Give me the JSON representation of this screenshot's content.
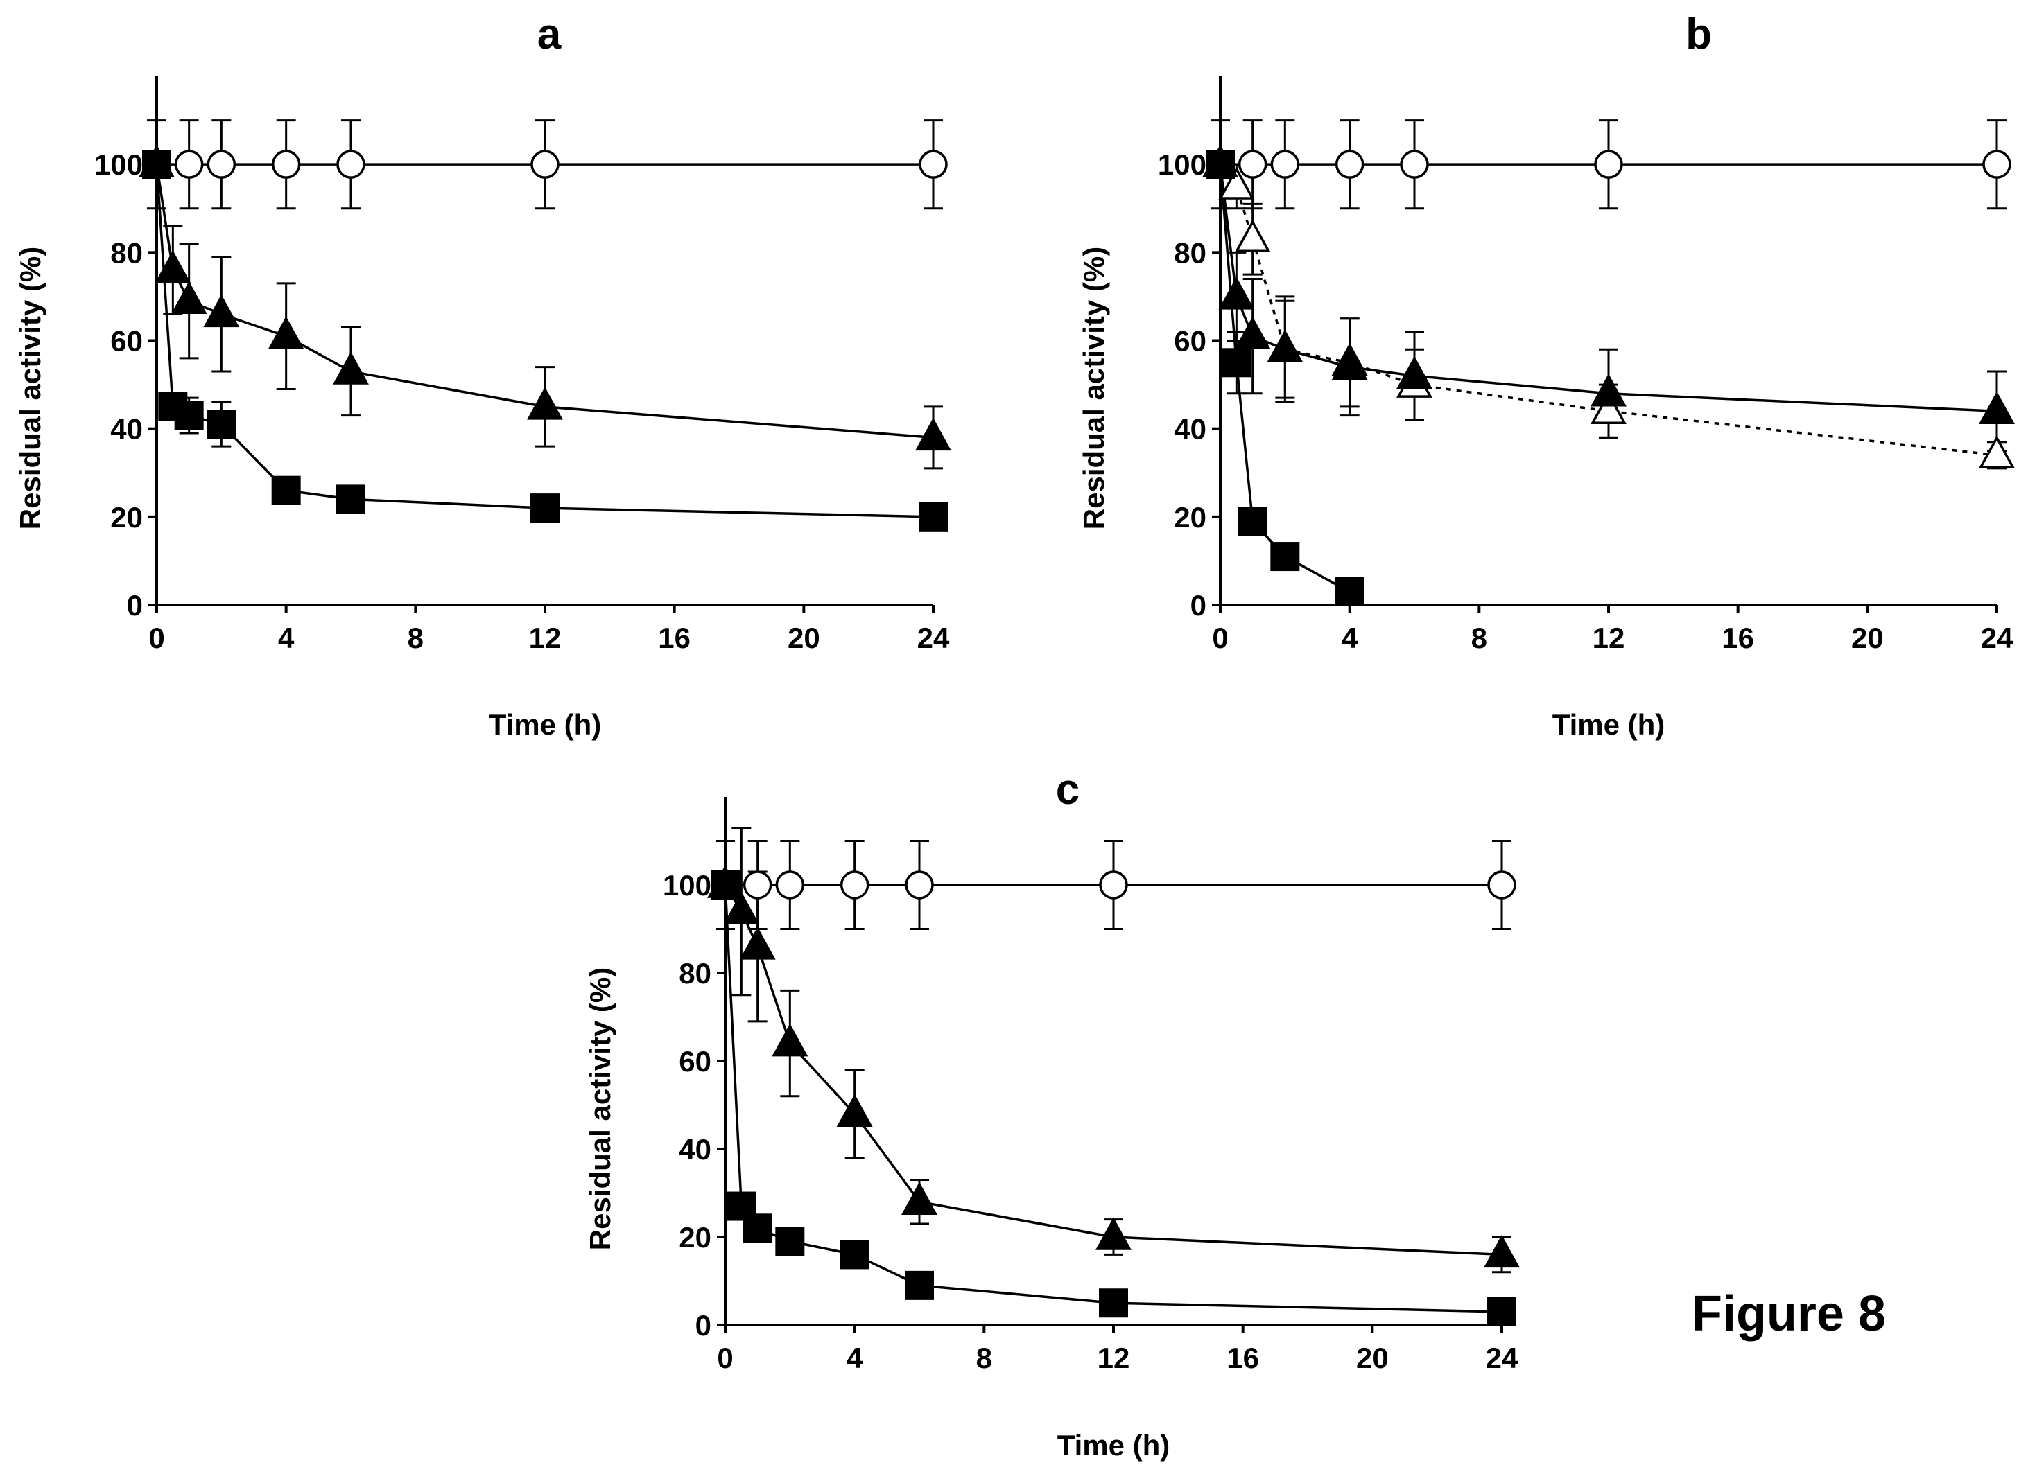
{
  "figure_label": "Figure 8",
  "chart_data": [
    {
      "panel": "a",
      "type": "line",
      "title": "a",
      "xlabel": "Time (h)",
      "ylabel": "Residual activity (%)",
      "xlim": [
        0,
        24
      ],
      "ylim": [
        0,
        120
      ],
      "xticks": [
        0,
        4,
        8,
        12,
        16,
        20,
        24
      ],
      "yticks": [
        0,
        20,
        40,
        60,
        80,
        100
      ],
      "series": [
        {
          "name": "open circles",
          "marker": "circle-open",
          "style": "solid",
          "x": [
            0,
            1,
            2,
            4,
            6,
            12,
            24
          ],
          "y": [
            100,
            100,
            100,
            100,
            100,
            100,
            100
          ],
          "err": [
            10,
            10,
            10,
            10,
            10,
            10,
            10
          ]
        },
        {
          "name": "filled triangles",
          "marker": "triangle-filled",
          "style": "solid",
          "x": [
            0,
            0.5,
            1,
            2,
            4,
            6,
            12,
            24
          ],
          "y": [
            100,
            76,
            69,
            66,
            61,
            53,
            45,
            38
          ],
          "err": [
            0,
            10,
            13,
            13,
            12,
            10,
            9,
            7
          ]
        },
        {
          "name": "filled squares",
          "marker": "square-filled",
          "style": "solid",
          "x": [
            0,
            0.5,
            1,
            2,
            4,
            6,
            12,
            24
          ],
          "y": [
            100,
            45,
            43,
            41,
            26,
            24,
            22,
            20
          ],
          "err": [
            0,
            0,
            4,
            5,
            3,
            0,
            0,
            0
          ]
        }
      ]
    },
    {
      "panel": "b",
      "type": "line",
      "title": "b",
      "xlabel": "Time (h)",
      "ylabel": "Residual activity (%)",
      "xlim": [
        0,
        24
      ],
      "ylim": [
        0,
        120
      ],
      "xticks": [
        0,
        4,
        8,
        12,
        16,
        20,
        24
      ],
      "yticks": [
        0,
        20,
        40,
        60,
        80,
        100
      ],
      "series": [
        {
          "name": "open circles",
          "marker": "circle-open",
          "style": "solid",
          "x": [
            0,
            1,
            2,
            4,
            6,
            12,
            24
          ],
          "y": [
            100,
            100,
            100,
            100,
            100,
            100,
            100
          ],
          "err": [
            10,
            10,
            10,
            10,
            10,
            10,
            10
          ]
        },
        {
          "name": "open triangles",
          "marker": "triangle-open",
          "style": "dotted",
          "x": [
            0,
            0.5,
            1,
            2,
            4,
            6,
            12,
            24
          ],
          "y": [
            100,
            95,
            83,
            58,
            55,
            50,
            44,
            34
          ],
          "err": [
            0,
            5,
            8,
            11,
            10,
            8,
            6,
            3
          ]
        },
        {
          "name": "filled triangles",
          "marker": "triangle-filled",
          "style": "solid",
          "x": [
            0,
            0.5,
            1,
            2,
            4,
            6,
            12,
            24
          ],
          "y": [
            100,
            70,
            61,
            58,
            54,
            52,
            48,
            44
          ],
          "err": [
            0,
            10,
            13,
            12,
            11,
            10,
            10,
            9
          ]
        },
        {
          "name": "filled squares",
          "marker": "square-filled",
          "style": "solid",
          "x": [
            0,
            0.5,
            1,
            2,
            4
          ],
          "y": [
            100,
            55,
            19,
            11,
            3
          ],
          "err": [
            0,
            7,
            0,
            0,
            0
          ]
        }
      ]
    },
    {
      "panel": "c",
      "type": "line",
      "title": "c",
      "xlabel": "Time (h)",
      "ylabel": "Residual activity (%)",
      "xlim": [
        0,
        24
      ],
      "ylim": [
        0,
        120
      ],
      "xticks": [
        0,
        4,
        8,
        12,
        16,
        20,
        24
      ],
      "yticks": [
        0,
        20,
        40,
        60,
        80,
        100
      ],
      "series": [
        {
          "name": "open circles",
          "marker": "circle-open",
          "style": "solid",
          "x": [
            0,
            1,
            2,
            4,
            6,
            12,
            24
          ],
          "y": [
            100,
            100,
            100,
            100,
            100,
            100,
            100
          ],
          "err": [
            10,
            10,
            10,
            10,
            10,
            10,
            10
          ]
        },
        {
          "name": "filled triangles",
          "marker": "triangle-filled",
          "style": "solid",
          "x": [
            0,
            0.5,
            1,
            2,
            4,
            6,
            12,
            24
          ],
          "y": [
            100,
            94,
            86,
            64,
            48,
            28,
            20,
            16
          ],
          "err": [
            0,
            19,
            17,
            12,
            10,
            5,
            4,
            4
          ]
        },
        {
          "name": "filled squares",
          "marker": "square-filled",
          "style": "solid",
          "x": [
            0,
            0.5,
            1,
            2,
            4,
            6,
            12,
            24
          ],
          "y": [
            100,
            27,
            22,
            19,
            16,
            9,
            5,
            3
          ],
          "err": [
            0,
            0,
            0,
            0,
            0,
            0,
            0,
            0
          ]
        }
      ]
    }
  ]
}
